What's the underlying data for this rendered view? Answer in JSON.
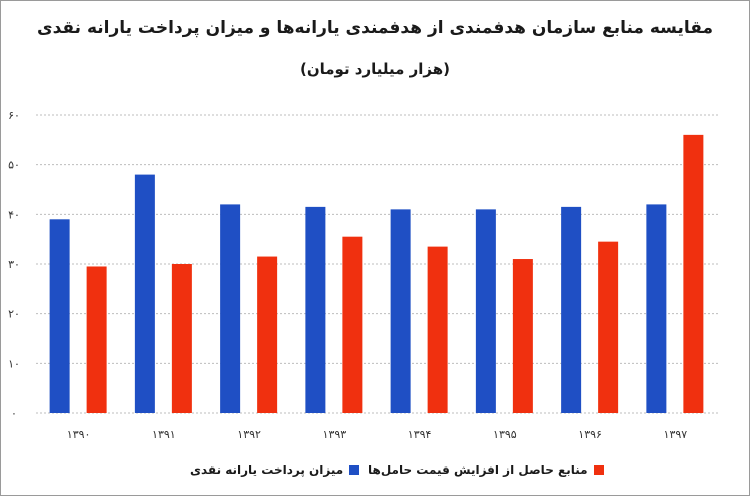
{
  "chart_data": {
    "type": "bar",
    "title": "مقایسه منابع سازمان هدفمندی از هدفمندی یارانه‌ها و میزان پرداخت یارانه نقدی",
    "subtitle": "(هزار میلیارد تومان)",
    "categories": [
      "۱۳۹۰",
      "۱۳۹۱",
      "۱۳۹۲",
      "۱۳۹۳",
      "۱۳۹۴",
      "۱۳۹۵",
      "۱۳۹۶",
      "۱۳۹۷"
    ],
    "series": [
      {
        "name": "میزان پرداخت یارانه نقدی",
        "color": "#1f4fc4",
        "values": [
          39,
          48,
          42,
          41.5,
          41,
          41,
          41.5,
          42
        ]
      },
      {
        "name": "منابع حاصل از افزایش قیمت حامل‌ها",
        "color": "#f0300f",
        "values": [
          29.5,
          30,
          31.5,
          35.5,
          33.5,
          31,
          34.5,
          56
        ]
      }
    ],
    "yticks": [
      "۰",
      "۱۰",
      "۲۰",
      "۳۰",
      "۴۰",
      "۵۰",
      "۶۰"
    ],
    "ylim": [
      0,
      60
    ],
    "grid": true,
    "legend_position": "bottom"
  }
}
